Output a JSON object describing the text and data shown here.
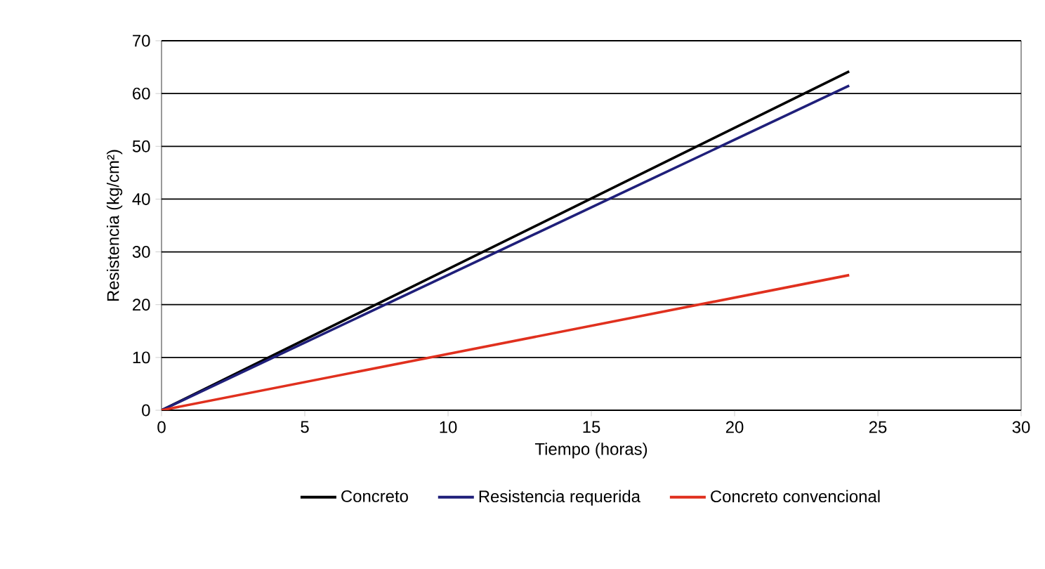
{
  "chart_data": {
    "type": "line",
    "xlabel": "Tiempo (horas)",
    "ylabel": "Resistencia (kg/cm²)",
    "xlim": [
      0,
      30
    ],
    "xticks": [
      0,
      5,
      10,
      15,
      20,
      25,
      30
    ],
    "ylim": [
      0,
      70
    ],
    "yticks": [
      0,
      10,
      20,
      30,
      40,
      50,
      60,
      70
    ],
    "grid": "y",
    "legend": "bottom",
    "line_style": "solid",
    "marker": "none",
    "x": [
      0,
      24
    ],
    "series": [
      {
        "name": "Concreto",
        "color": "#000000",
        "values": [
          0,
          64.2
        ]
      },
      {
        "name": "Resistencia requerida",
        "color": "#1f1f7a",
        "values": [
          0,
          61.5
        ]
      },
      {
        "name": "Concreto convencional",
        "color": "#e0301e",
        "values": [
          0,
          25.6
        ]
      }
    ]
  }
}
